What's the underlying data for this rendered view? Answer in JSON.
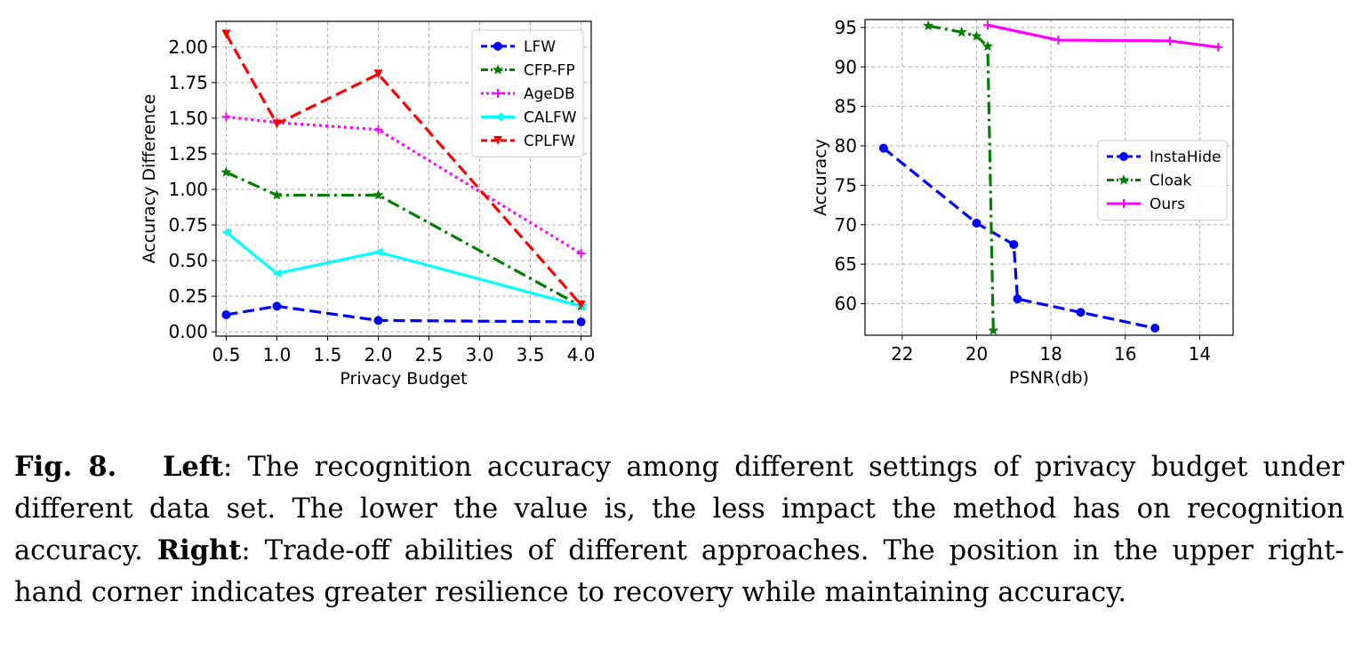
{
  "chart_data": [
    {
      "type": "line",
      "xlabel": "Privacy Budget",
      "ylabel": "Accuracy Difference",
      "xlim": [
        0.4,
        4.1
      ],
      "ylim": [
        -0.03,
        2.18
      ],
      "xticks": [
        0.5,
        1.0,
        1.5,
        2.0,
        2.5,
        3.0,
        3.5,
        4.0
      ],
      "xtick_labels": [
        "0.5",
        "1.0",
        "1.5",
        "2.0",
        "2.5",
        "3.0",
        "3.5",
        "4.0"
      ],
      "yticks": [
        0,
        0.25,
        0.5,
        0.75,
        1.0,
        1.25,
        1.5,
        1.75,
        2.0
      ],
      "ytick_labels": [
        "0.00",
        "0.25",
        "0.50",
        "0.75",
        "1.00",
        "1.25",
        "1.50",
        "1.75",
        "2.00"
      ],
      "grid": true,
      "legend_position": "top-right",
      "x": [
        0.5,
        1.0,
        2.0,
        4.0
      ],
      "series": [
        {
          "name": "LFW",
          "values": [
            0.12,
            0.18,
            0.08,
            0.07
          ],
          "color": "#0000ff",
          "dash": "dashed",
          "marker": "circle"
        },
        {
          "name": "CFP-FP",
          "values": [
            1.12,
            0.96,
            0.96,
            0.18
          ],
          "color": "#007f00",
          "dash": "dashdot",
          "marker": "star"
        },
        {
          "name": "AgeDB",
          "values": [
            1.51,
            1.47,
            1.42,
            0.55
          ],
          "color": "#ff00ff",
          "dash": "dotted",
          "marker": "plus"
        },
        {
          "name": "CALFW",
          "values": [
            0.7,
            0.41,
            0.56,
            0.18
          ],
          "color": "#00ffff",
          "dash": "solid",
          "marker": "left-triangle"
        },
        {
          "name": "CPLFW",
          "values": [
            2.09,
            1.46,
            1.81,
            0.19
          ],
          "color": "#ff0000",
          "dash": "dashed",
          "marker": "down-triangle"
        }
      ]
    },
    {
      "type": "line",
      "xlabel": "PSNR(db)",
      "ylabel": "Accuracy",
      "xlim": [
        23.0,
        13.1
      ],
      "xlim_note_inverted": true,
      "ylim": [
        56.0,
        96.0
      ],
      "xticks": [
        22,
        20,
        18,
        16,
        14
      ],
      "xtick_labels": [
        "22",
        "20",
        "18",
        "16",
        "14"
      ],
      "yticks": [
        60,
        65,
        70,
        75,
        80,
        85,
        90,
        95
      ],
      "ytick_labels": [
        "60",
        "65",
        "70",
        "75",
        "80",
        "85",
        "90",
        "95"
      ],
      "grid": true,
      "legend_position": "center-right",
      "series": [
        {
          "name": "InstaHide",
          "color": "#0000ff",
          "dash": "dashed",
          "marker": "circle",
          "x": [
            22.5,
            20.0,
            19.0,
            18.9,
            17.2,
            15.2
          ],
          "values": [
            79.7,
            70.2,
            67.5,
            60.6,
            58.9,
            56.9
          ]
        },
        {
          "name": "Cloak",
          "color": "#007f00",
          "dash": "dashdot",
          "marker": "star",
          "x": [
            21.3,
            20.4,
            20.0,
            19.7,
            19.55
          ],
          "values": [
            95.2,
            94.4,
            93.9,
            92.6,
            56.6
          ]
        },
        {
          "name": "Ours",
          "color": "#ff00ff",
          "dash": "solid",
          "marker": "plus",
          "x": [
            19.7,
            17.8,
            14.8,
            13.5
          ],
          "values": [
            95.3,
            93.4,
            93.3,
            92.5
          ]
        }
      ]
    }
  ],
  "caption": {
    "fig_label": "Fig. 8.",
    "left_label": "Left",
    "left_text": ": The recognition accuracy among different settings of privacy budget under different data set. The lower the value is, the less impact the method has on recognition accuracy. ",
    "right_label": "Right",
    "right_text": ": Trade-off abilities of different approaches. The position in the upper right-hand corner indicates greater resilience to recovery while maintaining accuracy."
  }
}
